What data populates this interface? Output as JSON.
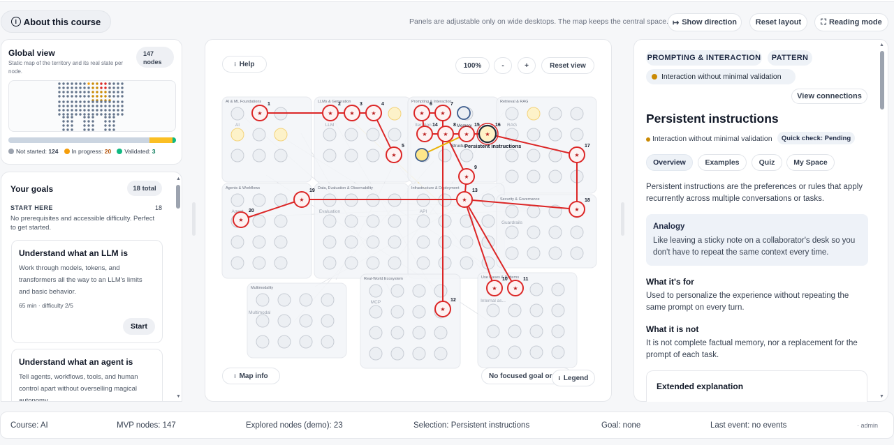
{
  "header": {
    "about_label": "About this course",
    "hint": "Panels are adjustable only on wide desktops. The map keeps the central space.",
    "show_direction": "Show direction",
    "reset_layout": "Reset layout",
    "reading_mode": "Reading mode"
  },
  "global_view": {
    "title": "Global view",
    "subtitle": "Static map of the territory and its real state per node.",
    "nodes_count": "147",
    "nodes_label": "nodes",
    "not_started_label": "Not started:",
    "not_started": "124",
    "in_progress_label": "In progress:",
    "in_progress": "20",
    "validated_label": "Validated:",
    "validated": "3",
    "progress": {
      "not_started": 124,
      "in_progress": 20,
      "validated": 3,
      "total": 147
    },
    "colors": {
      "not_started": "#9ca3af",
      "in_progress": "#f59e0b",
      "validated": "#10b981"
    }
  },
  "goals": {
    "title": "Your goals",
    "total": "18 total",
    "section": "START HERE",
    "section_count": "18",
    "section_desc": "No prerequisites and accessible difficulty. Perfect to get started.",
    "cards": [
      {
        "title": "Understand what an LLM is",
        "desc": "Work through models, tokens, and transformers all the way to an LLM's limits and basic behavior.",
        "meta": "65 min  · difficulty 2/5",
        "action": "Start"
      },
      {
        "title": "Understand what an agent is",
        "desc": "Tell agents, workflows, tools, and human control apart without overselling magical autonomy."
      }
    ]
  },
  "map": {
    "help": "Help",
    "zoom": "100%",
    "zoom_out": "-",
    "zoom_in": "+",
    "reset_view": "Reset view",
    "map_info": "Map info",
    "focus_status": "No focused goal or path",
    "legend": "Legend",
    "clusters": [
      {
        "title": "AI & ML Foundations",
        "hub": "AI"
      },
      {
        "title": "LLMs & Generation",
        "hub": "LLM"
      },
      {
        "title": "Prompting & Interaction",
        "hub": "Iteration"
      },
      {
        "title": "Retrieval & RAG",
        "hub": "RAG"
      },
      {
        "title": "Agents & Workflows",
        "hub": "Agent"
      },
      {
        "title": "Data, Evaluation & Observability",
        "hub": "Evaluation"
      },
      {
        "title": "Infrastructure & Deployment",
        "hub": "API"
      },
      {
        "title": "Security & Governance",
        "hub": "Guardrails"
      },
      {
        "title": "Multimodality",
        "hub": "Multimodal"
      },
      {
        "title": "Real-World Ecosystem",
        "hub": "MCP"
      },
      {
        "title": "Use Cases & Patterns",
        "hub": "Internal as..."
      }
    ],
    "node_labels": {
      "memory": "Memory",
      "struct": "Structu...",
      "selected": "Persistent instructions"
    },
    "path_numbers": [
      "1",
      "2",
      "3",
      "4",
      "5",
      "6",
      "7",
      "8",
      "9",
      "10",
      "11",
      "12",
      "13",
      "14",
      "15",
      "16",
      "17",
      "18",
      "19",
      "20"
    ]
  },
  "right_panel": {
    "tag1": "PROMPTING & INTERACTION",
    "tag2": "PATTERN",
    "status": "Interaction without minimal validation",
    "view_connections": "View connections",
    "title": "Persistent instructions",
    "status2": "Interaction without minimal validation",
    "quick_check": "Quick check: Pending",
    "tabs": [
      "Overview",
      "Examples",
      "Quiz",
      "My Space"
    ],
    "overview": "Persistent instructions are the preferences or rules that apply recurrently across multiple conversations or tasks.",
    "analogy_title": "Analogy",
    "analogy": "Like leaving a sticky note on a collaborator's desk so you don't have to repeat the same context every time.",
    "what_for_title": "What it's for",
    "what_for": "Used to personalize the experience without repeating the same prompt on every turn.",
    "what_not_title": "What it is not",
    "what_not": "It is not complete factual memory, nor a replacement for the prompt of each task.",
    "extended_title": "Extended explanation"
  },
  "footer": {
    "course": "Course: AI",
    "mvp": "MVP nodes: 147",
    "explored": "Explored nodes (demo): 23",
    "selection": "Selection: Persistent instructions",
    "goal": "Goal: none",
    "last_event": "Last event: no events",
    "user": "· admin"
  }
}
